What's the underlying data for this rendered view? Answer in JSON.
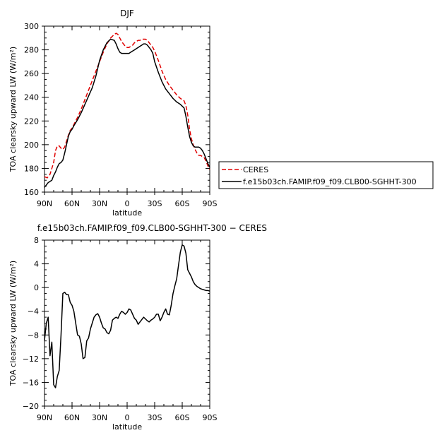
{
  "chart_data": [
    {
      "type": "line",
      "title": "DJF",
      "xlabel": "latitude",
      "ylabel": "TOA clearsky upward LW (W/m²)",
      "xlim": [
        90,
        -90
      ],
      "ylim": [
        160,
        300
      ],
      "x_ticks": [
        90,
        60,
        30,
        0,
        -30,
        -60,
        -90
      ],
      "x_tick_labels": [
        "90N",
        "60N",
        "30N",
        "0",
        "30S",
        "60S",
        "90S"
      ],
      "y_ticks": [
        160,
        180,
        200,
        220,
        240,
        260,
        280,
        300
      ],
      "y_tick_labels": [
        "160",
        "180",
        "200",
        "220",
        "240",
        "260",
        "280",
        "300"
      ],
      "legend": {
        "placement": "right-outside",
        "entries": [
          "CERES",
          "f.e15b03ch.FAMIP.f09_f09.CLB00-SGHHT-300"
        ]
      },
      "series": [
        {
          "name": "CERES",
          "color": "#e00000",
          "dash": "dashed",
          "x": [
            90,
            87,
            84,
            82,
            80,
            78,
            76,
            74,
            72,
            70,
            68,
            66,
            64,
            62,
            60,
            58,
            54,
            50,
            46,
            42,
            38,
            34,
            30,
            26,
            22,
            18,
            14,
            12,
            10,
            8,
            6,
            4,
            2,
            0,
            -2,
            -4,
            -6,
            -8,
            -10,
            -12,
            -14,
            -16,
            -18,
            -20,
            -22,
            -24,
            -26,
            -28,
            -30,
            -34,
            -38,
            -42,
            -46,
            -50,
            -54,
            -58,
            -62,
            -64,
            -66,
            -68,
            -70,
            -72,
            -74,
            -76,
            -78,
            -80,
            -82,
            -84,
            -86,
            -88,
            -90
          ],
          "y": [
            173,
            172,
            175,
            180,
            185,
            195,
            199,
            199,
            197,
            196,
            198,
            203,
            208,
            212,
            214,
            217,
            223,
            230,
            238,
            246,
            254,
            262,
            270,
            278,
            285,
            290,
            293,
            294,
            293,
            290,
            287,
            285,
            283,
            282,
            282,
            283,
            284,
            286,
            287,
            288,
            288,
            289,
            289,
            289,
            288,
            286,
            284,
            282,
            279,
            271,
            262,
            255,
            250,
            246,
            242,
            239,
            237,
            233,
            225,
            213,
            205,
            200,
            196,
            193,
            191,
            191,
            190,
            189,
            186,
            182,
            179
          ]
        },
        {
          "name": "f.e15b03ch.FAMIP.f09_f09.CLB00-SGHHT-300",
          "color": "#000000",
          "dash": "solid",
          "x": [
            90,
            88,
            86,
            84,
            82,
            80,
            78,
            76,
            74,
            72,
            70,
            68,
            66,
            64,
            62,
            60,
            58,
            54,
            50,
            46,
            42,
            38,
            34,
            30,
            26,
            22,
            18,
            14,
            12,
            10,
            8,
            6,
            4,
            2,
            0,
            -2,
            -4,
            -6,
            -8,
            -10,
            -12,
            -14,
            -16,
            -18,
            -20,
            -22,
            -24,
            -26,
            -28,
            -30,
            -34,
            -38,
            -42,
            -46,
            -50,
            -54,
            -58,
            -62,
            -64,
            -66,
            -68,
            -70,
            -72,
            -74,
            -76,
            -78,
            -80,
            -82,
            -84,
            -86,
            -88,
            -90
          ],
          "y": [
            164,
            166,
            168,
            169,
            170,
            174,
            177,
            181,
            184,
            185,
            187,
            193,
            200,
            207,
            211,
            213,
            216,
            221,
            227,
            234,
            241,
            248,
            258,
            271,
            280,
            286,
            289,
            288,
            285,
            281,
            278,
            277,
            277,
            277,
            277,
            277,
            278,
            279,
            280,
            281,
            282,
            283,
            284,
            285,
            285,
            284,
            282,
            280,
            277,
            270,
            261,
            253,
            247,
            243,
            239,
            236,
            234,
            231,
            224,
            215,
            207,
            202,
            199,
            198,
            198,
            198,
            197,
            195,
            192,
            188,
            184,
            181
          ]
        }
      ]
    },
    {
      "type": "line",
      "title": "f.e15b03ch.FAMIP.f09_f09.CLB00-SGHHT-300 − CERES",
      "xlabel": "latitude",
      "ylabel": "TOA clearsky upward LW (W/m²)",
      "xlim": [
        90,
        -90
      ],
      "ylim": [
        -20,
        8
      ],
      "x_ticks": [
        90,
        60,
        30,
        0,
        -30,
        -60,
        -90
      ],
      "x_tick_labels": [
        "90N",
        "60N",
        "30N",
        "0",
        "30S",
        "60S",
        "90S"
      ],
      "y_ticks": [
        -20,
        -16,
        -12,
        -8,
        -4,
        0,
        4,
        8
      ],
      "y_tick_labels": [
        "−20",
        "−16",
        "−12",
        "−8",
        "−4",
        "0",
        "4",
        "8"
      ],
      "series": [
        {
          "color": "#000000",
          "dash": "solid",
          "x": [
            90,
            88,
            86,
            84,
            82,
            80,
            78,
            76,
            74,
            72,
            70,
            68,
            66,
            64,
            62,
            60,
            58,
            56,
            54,
            52,
            50,
            48,
            46,
            44,
            42,
            40,
            38,
            36,
            34,
            32,
            30,
            28,
            26,
            24,
            22,
            20,
            18,
            16,
            14,
            12,
            10,
            8,
            6,
            4,
            2,
            0,
            -2,
            -4,
            -6,
            -8,
            -10,
            -12,
            -14,
            -16,
            -18,
            -20,
            -22,
            -24,
            -26,
            -28,
            -30,
            -32,
            -34,
            -36,
            -38,
            -40,
            -42,
            -44,
            -46,
            -48,
            -50,
            -52,
            -54,
            -56,
            -58,
            -60,
            -62,
            -64,
            -66,
            -68,
            -70,
            -72,
            -74,
            -76,
            -78,
            -80,
            -82,
            -84,
            -86,
            -88,
            -90
          ],
          "y": [
            -8.9,
            -6.0,
            -5.0,
            -11.5,
            -9.2,
            -16.4,
            -16.9,
            -15.0,
            -14.0,
            -8.0,
            -1.0,
            -0.8,
            -1.2,
            -1.2,
            -2.5,
            -3.0,
            -4.0,
            -6.0,
            -8.0,
            -8.2,
            -9.5,
            -12.0,
            -11.8,
            -9.0,
            -8.5,
            -7.0,
            -6.0,
            -5.0,
            -4.6,
            -4.4,
            -5.0,
            -6.0,
            -6.8,
            -7.0,
            -7.6,
            -7.8,
            -7.2,
            -5.5,
            -5.2,
            -5.0,
            -5.2,
            -4.5,
            -4.0,
            -4.2,
            -4.5,
            -4.2,
            -3.6,
            -3.8,
            -4.5,
            -5.2,
            -5.5,
            -6.2,
            -5.8,
            -5.4,
            -5.0,
            -5.3,
            -5.6,
            -5.8,
            -5.5,
            -5.3,
            -5.0,
            -4.5,
            -4.5,
            -5.6,
            -5.0,
            -4.2,
            -3.6,
            -4.5,
            -4.6,
            -3.0,
            -1.0,
            0.3,
            1.5,
            3.8,
            6.0,
            7.2,
            7.0,
            5.8,
            3.0,
            2.4,
            1.8,
            1.0,
            0.5,
            0.2,
            0.0,
            -0.2,
            -0.3,
            -0.4,
            -0.5,
            -0.5,
            -0.6
          ]
        }
      ]
    }
  ]
}
